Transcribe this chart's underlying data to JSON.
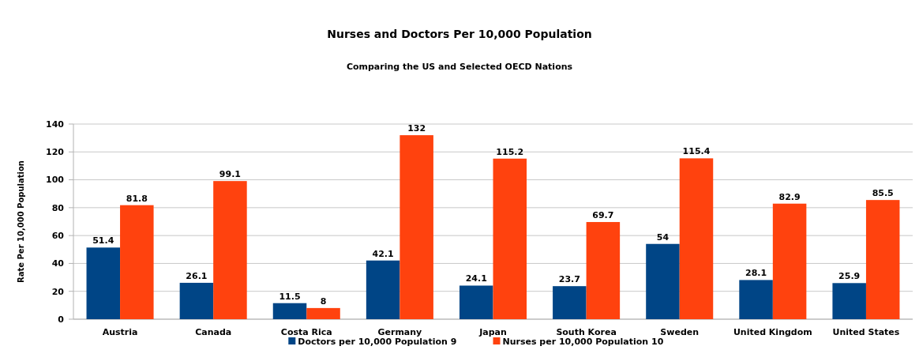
{
  "chart_data": {
    "type": "bar",
    "title": "Nurses and Doctors Per 10,000 Population",
    "subtitle": "Comparing the US and Selected OECD Nations",
    "ylabel": "Rate Per 10,000 Population",
    "categories": [
      "Austria",
      "Canada",
      "Costa Rica",
      "Germany",
      "Japan",
      "South Korea",
      "Sweden",
      "United Kingdom",
      "United States"
    ],
    "series": [
      {
        "name": "Doctors per 10,000 Population 9",
        "color": "#004586",
        "values": [
          51.4,
          26.1,
          11.5,
          42.1,
          24.1,
          23.7,
          54,
          28.1,
          25.9
        ]
      },
      {
        "name": "Nurses per 10,000 Population 10",
        "color": "#ff420e",
        "values": [
          81.8,
          99.1,
          8,
          132,
          115.2,
          69.7,
          115.4,
          82.9,
          85.5
        ]
      }
    ],
    "ylim": [
      0,
      140
    ],
    "yticks": [
      0,
      20,
      40,
      60,
      80,
      100,
      120,
      140
    ],
    "grid": "y",
    "legend": "bottom",
    "data_labels": true
  }
}
